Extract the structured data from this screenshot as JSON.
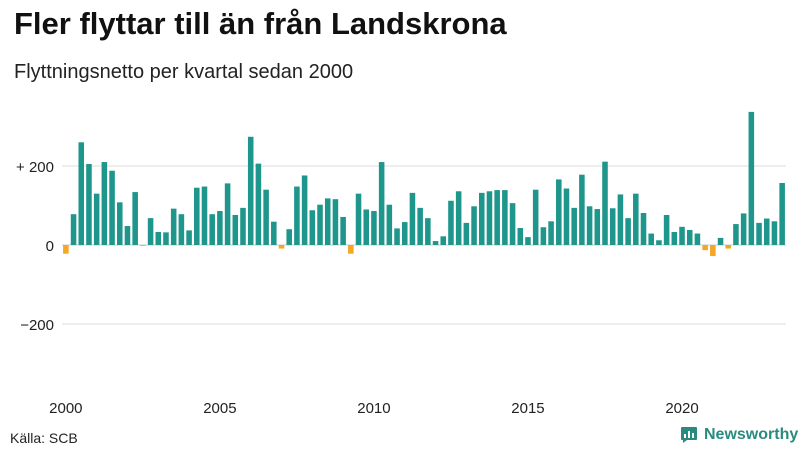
{
  "header": {
    "title": "Fler flyttar till än från Landskrona",
    "subtitle": "Flyttningsnetto per kvartal sedan 2000"
  },
  "footer": {
    "source": "Källa: SCB",
    "brand": "Newsworthy"
  },
  "colors": {
    "positive": "#1f968b",
    "negative": "#f5a623",
    "grid": "#dddddd",
    "brand": "#2a8a80"
  },
  "chart_data": {
    "type": "bar",
    "title": "Fler flyttar till än från Landskrona",
    "subtitle": "Flyttningsnetto per kvartal sedan 2000",
    "xlabel": "",
    "ylabel": "",
    "ylim": [
      -300,
      330
    ],
    "grid": true,
    "y_ticks": [
      {
        "value": 200,
        "label": "+ 200"
      },
      {
        "value": 0,
        "label": "0"
      },
      {
        "value": -200,
        "label": "−200"
      }
    ],
    "x_ticks": [
      "2000",
      "2005",
      "2010",
      "2015",
      "2020"
    ],
    "x_start": "2000 Q1",
    "frequency": "quarterly",
    "values": [
      -22,
      78,
      260,
      205,
      130,
      210,
      188,
      108,
      48,
      134,
      0,
      68,
      33,
      32,
      92,
      78,
      37,
      145,
      148,
      78,
      86,
      156,
      76,
      94,
      274,
      206,
      140,
      59,
      -9,
      40,
      148,
      176,
      88,
      102,
      118,
      116,
      71,
      -22,
      130,
      90,
      86,
      210,
      102,
      42,
      58,
      132,
      94,
      68,
      10,
      22,
      112,
      136,
      56,
      98,
      132,
      136,
      139,
      139,
      106,
      43,
      20,
      140,
      45,
      60,
      166,
      143,
      94,
      178,
      98,
      91,
      211,
      93,
      128,
      68,
      130,
      81,
      29,
      12,
      76,
      33,
      46,
      38,
      29,
      -13,
      -28,
      18,
      -9,
      53,
      80,
      337,
      56,
      67,
      60,
      157
    ]
  }
}
